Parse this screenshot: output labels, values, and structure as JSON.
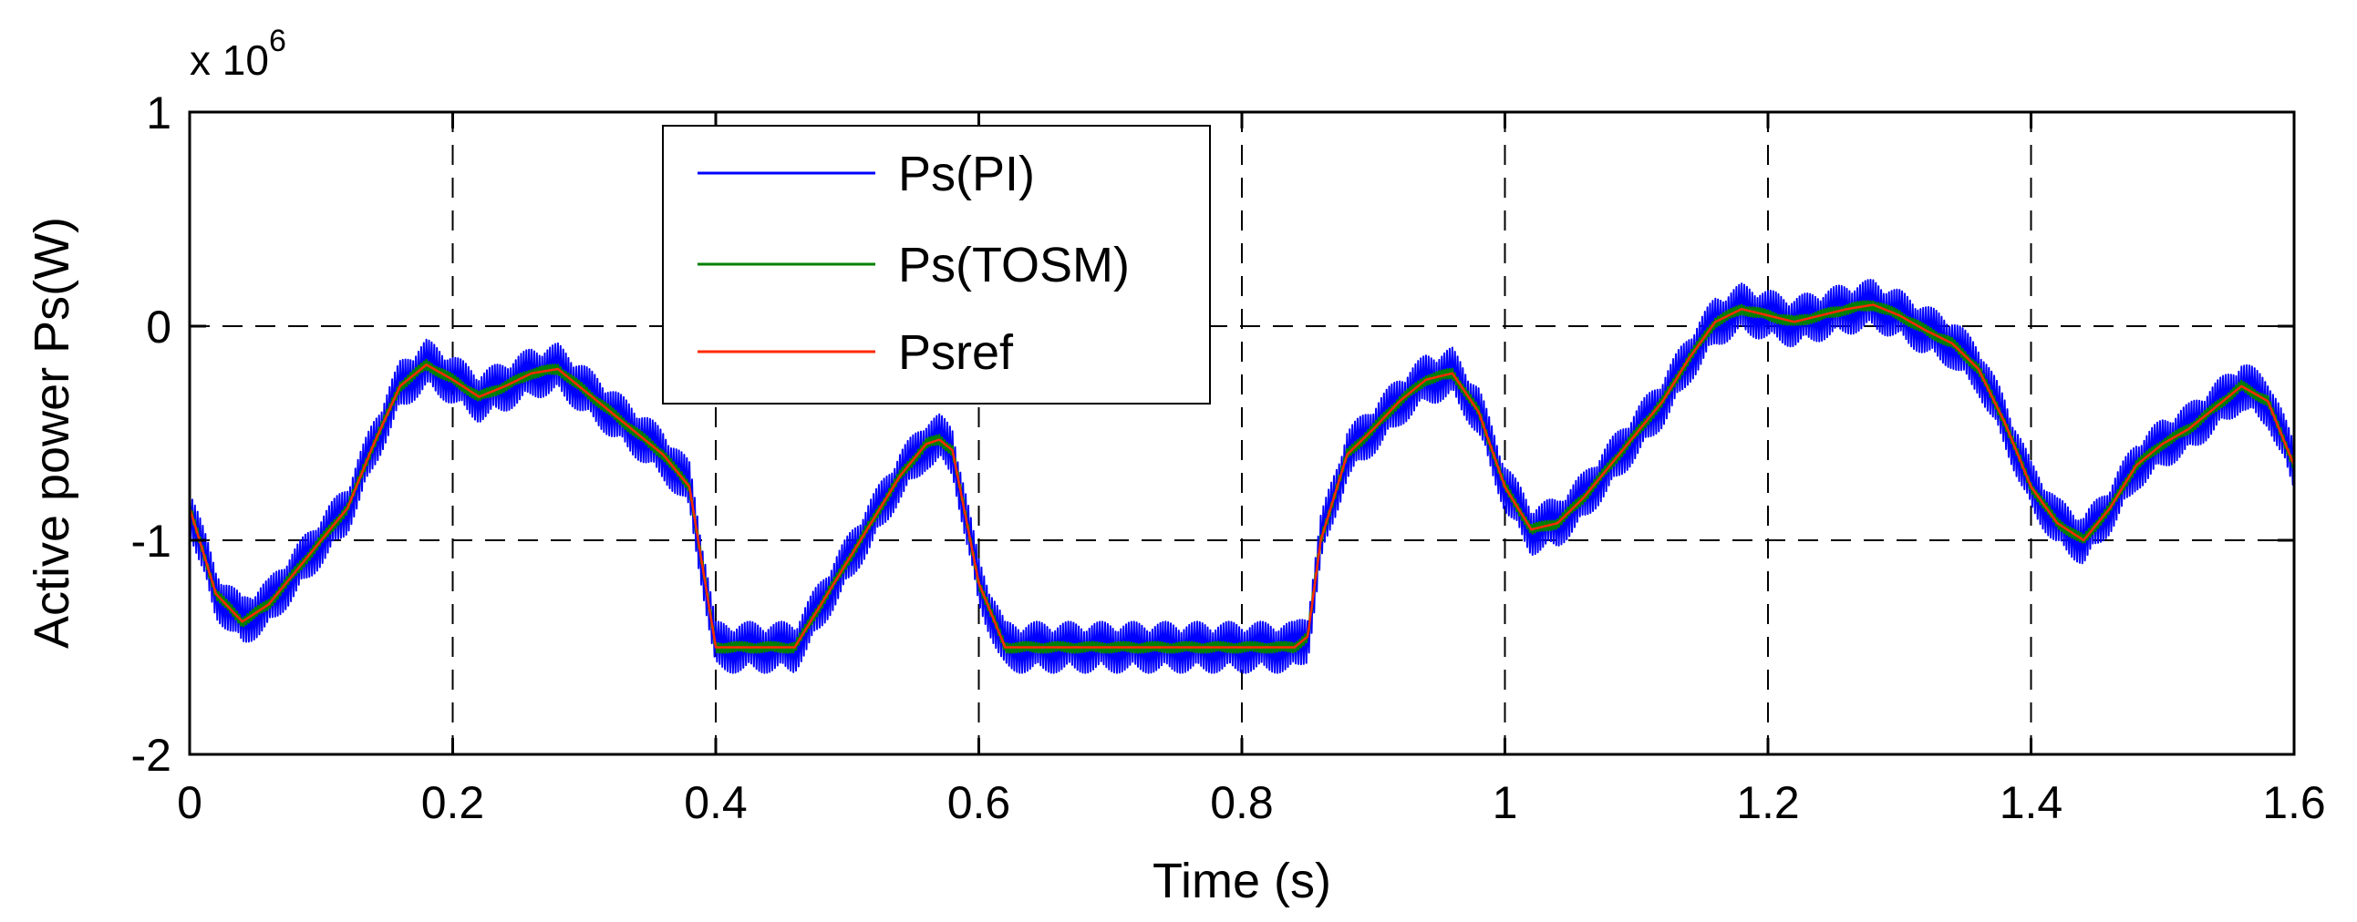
{
  "chart_data": {
    "type": "line",
    "title": "",
    "xlabel": "Time (s)",
    "ylabel": "Active power Ps(W)",
    "y_multiplier": {
      "base": "x 10",
      "exponent": "6"
    },
    "xlim": [
      0,
      1.6
    ],
    "ylim": [
      -2,
      1
    ],
    "x_ticks": [
      0,
      0.2,
      0.4,
      0.6,
      0.8,
      1,
      1.2,
      1.4,
      1.6
    ],
    "x_tick_labels": [
      "0",
      "0.2",
      "0.4",
      "0.6",
      "0.8",
      "1",
      "1.2",
      "1.4",
      "1.6"
    ],
    "y_ticks": [
      -2,
      -1,
      0,
      1
    ],
    "y_tick_labels": [
      "-2",
      "-1",
      "0",
      "1"
    ],
    "grid": true,
    "legend_position": "top-left",
    "series": [
      {
        "name": "Ps(PI)",
        "color": "#0000ff",
        "ripple": 0.12
      },
      {
        "name": "Ps(TOSM)",
        "color": "#008000",
        "ripple": 0.025
      },
      {
        "name": "Psref",
        "color": "#ff2a00",
        "ripple": 0
      }
    ],
    "reference_points": {
      "x": [
        0,
        0.02,
        0.04,
        0.06,
        0.08,
        0.1,
        0.12,
        0.14,
        0.16,
        0.18,
        0.2,
        0.22,
        0.24,
        0.26,
        0.28,
        0.3,
        0.32,
        0.34,
        0.36,
        0.38,
        0.4,
        0.42,
        0.44,
        0.46,
        0.48,
        0.5,
        0.52,
        0.54,
        0.56,
        0.57,
        0.58,
        0.6,
        0.62,
        0.64,
        0.7,
        0.8,
        0.84,
        0.85,
        0.86,
        0.88,
        0.9,
        0.92,
        0.94,
        0.96,
        0.98,
        1.0,
        1.02,
        1.04,
        1.06,
        1.08,
        1.1,
        1.12,
        1.14,
        1.16,
        1.18,
        1.2,
        1.22,
        1.24,
        1.26,
        1.28,
        1.3,
        1.32,
        1.34,
        1.36,
        1.38,
        1.4,
        1.42,
        1.44,
        1.46,
        1.48,
        1.5,
        1.52,
        1.54,
        1.56,
        1.58,
        1.6
      ],
      "y": [
        -0.85,
        -1.25,
        -1.38,
        -1.3,
        -1.15,
        -1.0,
        -0.85,
        -0.55,
        -0.28,
        -0.18,
        -0.25,
        -0.33,
        -0.28,
        -0.22,
        -0.2,
        -0.3,
        -0.4,
        -0.5,
        -0.6,
        -0.75,
        -1.5,
        -1.5,
        -1.5,
        -1.5,
        -1.3,
        -1.1,
        -0.9,
        -0.7,
        -0.55,
        -0.53,
        -0.58,
        -1.2,
        -1.5,
        -1.5,
        -1.5,
        -1.5,
        -1.5,
        -1.45,
        -1.0,
        -0.6,
        -0.48,
        -0.35,
        -0.25,
        -0.22,
        -0.4,
        -0.75,
        -0.95,
        -0.92,
        -0.8,
        -0.65,
        -0.5,
        -0.35,
        -0.15,
        0.02,
        0.08,
        0.05,
        0.02,
        0.05,
        0.08,
        0.1,
        0.05,
        -0.02,
        -0.08,
        -0.2,
        -0.45,
        -0.75,
        -0.92,
        -1.0,
        -0.85,
        -0.65,
        -0.55,
        -0.48,
        -0.38,
        -0.28,
        -0.35,
        -0.65
      ]
    }
  }
}
